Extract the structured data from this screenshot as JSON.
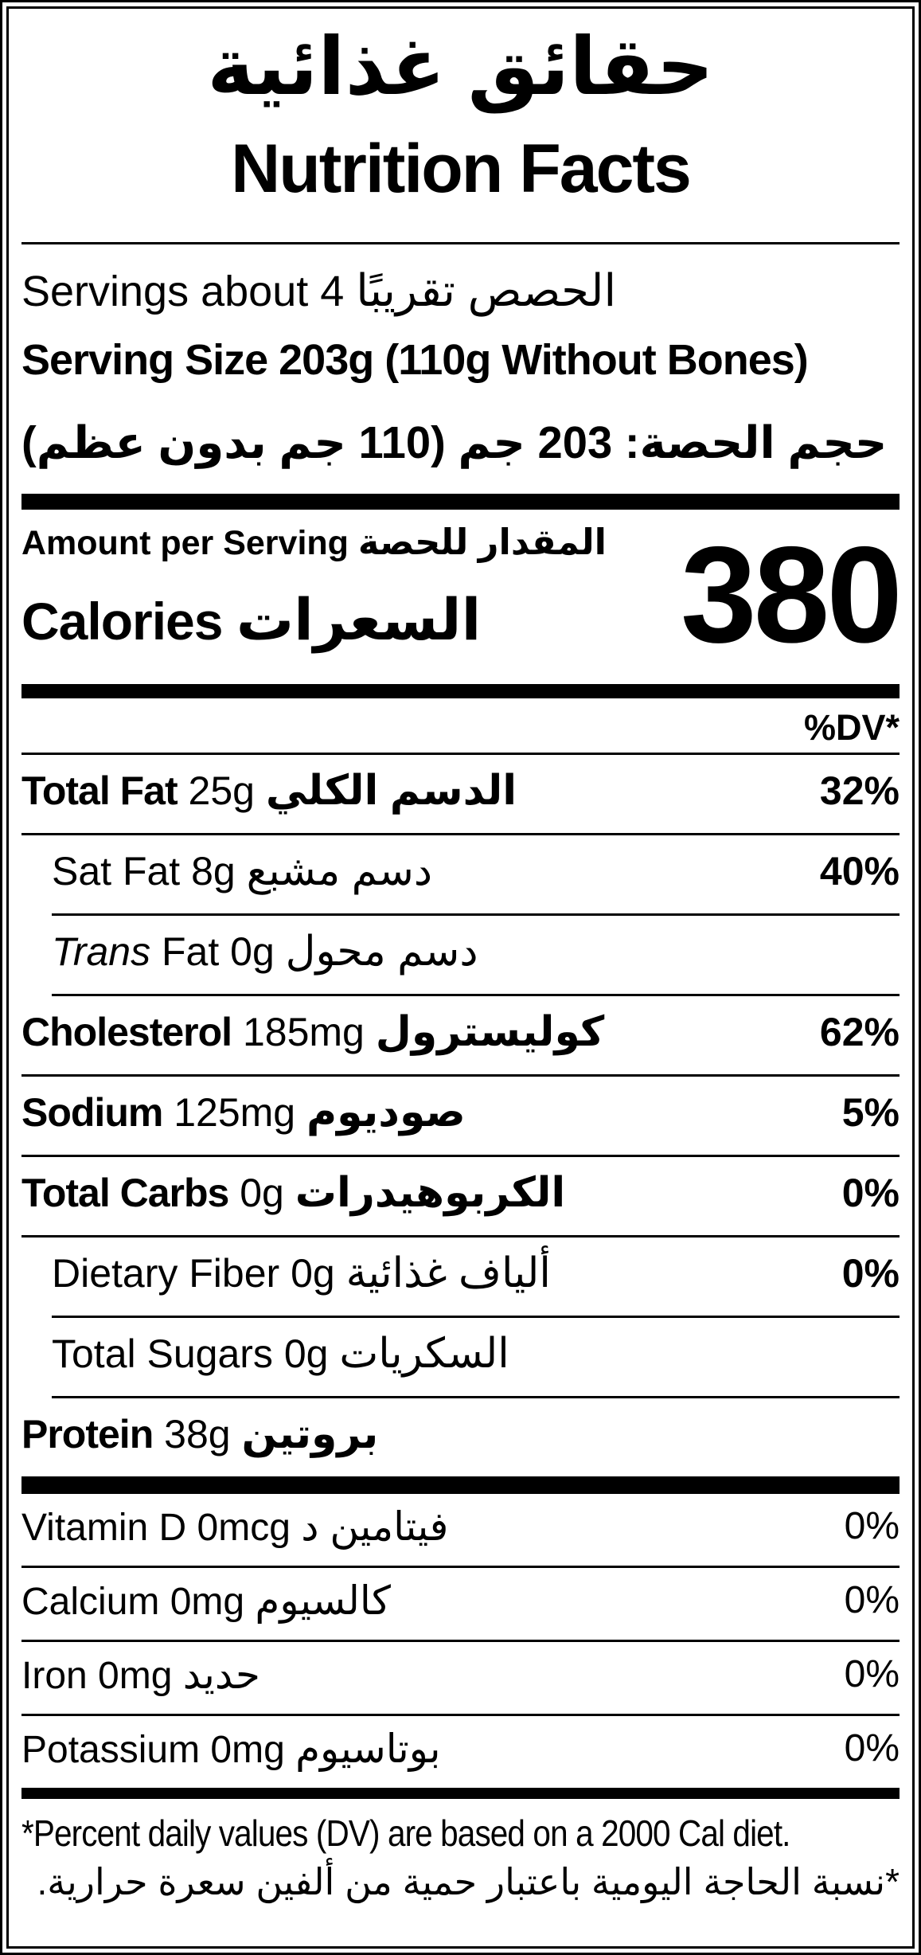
{
  "colors": {
    "ink": "#000000",
    "paper": "#ffffff"
  },
  "header": {
    "title_ar": "حقائق غذائية",
    "title_en": "Nutrition Facts"
  },
  "serving": {
    "servings_en": "Servings about 4",
    "servings_ar": "الحصص تقريبًا",
    "serving_size_en": "Serving Size 203g (110g Without Bones)",
    "serving_size_ar": "حجم الحصة: 203 جم (110 جم بدون عظم)"
  },
  "calories": {
    "amount_per_serving_en": "Amount per Serving",
    "amount_per_serving_ar": "المقدار للحصة",
    "label_en": "Calories",
    "label_ar": "السعرات",
    "value": "380"
  },
  "dv_header": "%DV*",
  "nutrients": [
    {
      "en_bold": "Total Fat",
      "en_italic": "",
      "en_rest": "25g",
      "ar": "الدسم الكلي",
      "dv": "32%",
      "dv_bold": true,
      "indent": false,
      "rule": true
    },
    {
      "en_bold": "",
      "en_italic": "",
      "en_rest": "Sat Fat 8g",
      "ar": "دسم مشبع",
      "dv": "40%",
      "dv_bold": true,
      "indent": true,
      "rule": true
    },
    {
      "en_bold": "",
      "en_italic": "Trans",
      "en_rest": "Fat 0g",
      "ar": "دسم محول",
      "dv": "",
      "dv_bold": false,
      "indent": true,
      "rule": true
    },
    {
      "en_bold": "Cholesterol",
      "en_italic": "",
      "en_rest": "185mg",
      "ar": "كوليسترول",
      "dv": "62%",
      "dv_bold": true,
      "indent": false,
      "rule": true
    },
    {
      "en_bold": "Sodium",
      "en_italic": "",
      "en_rest": "125mg",
      "ar": "صوديوم",
      "dv": "5%",
      "dv_bold": true,
      "indent": false,
      "rule": true
    },
    {
      "en_bold": "Total Carbs",
      "en_italic": "",
      "en_rest": "0g",
      "ar": "الكربوهيدرات",
      "dv": "0%",
      "dv_bold": true,
      "indent": false,
      "rule": true
    },
    {
      "en_bold": "",
      "en_italic": "",
      "en_rest": "Dietary Fiber 0g",
      "ar": "ألياف غذائية",
      "dv": "0%",
      "dv_bold": true,
      "indent": true,
      "rule": true
    },
    {
      "en_bold": "",
      "en_italic": "",
      "en_rest": "Total Sugars 0g",
      "ar": "السكريات",
      "dv": "",
      "dv_bold": false,
      "indent": true,
      "rule": true
    },
    {
      "en_bold": "Protein",
      "en_italic": "",
      "en_rest": "38g",
      "ar": "بروتين",
      "dv": "",
      "dv_bold": false,
      "indent": false,
      "rule": false
    }
  ],
  "vitamins": [
    {
      "en": "Vitamin D 0mcg",
      "ar": "فيتامين د",
      "dv": "0%",
      "rule": true
    },
    {
      "en": "Calcium 0mg",
      "ar": "كالسيوم",
      "dv": "0%",
      "rule": true
    },
    {
      "en": "Iron 0mg",
      "ar": "حديد",
      "dv": "0%",
      "rule": true
    },
    {
      "en": "Potassium 0mg",
      "ar": "بوتاسيوم",
      "dv": "0%",
      "rule": false
    }
  ],
  "footnote": {
    "en": "*Percent daily values (DV) are based on a 2000 Cal diet.",
    "ar": "*نسبة الحاجة اليومية باعتبار حمية من ألفين سعرة حرارية."
  }
}
